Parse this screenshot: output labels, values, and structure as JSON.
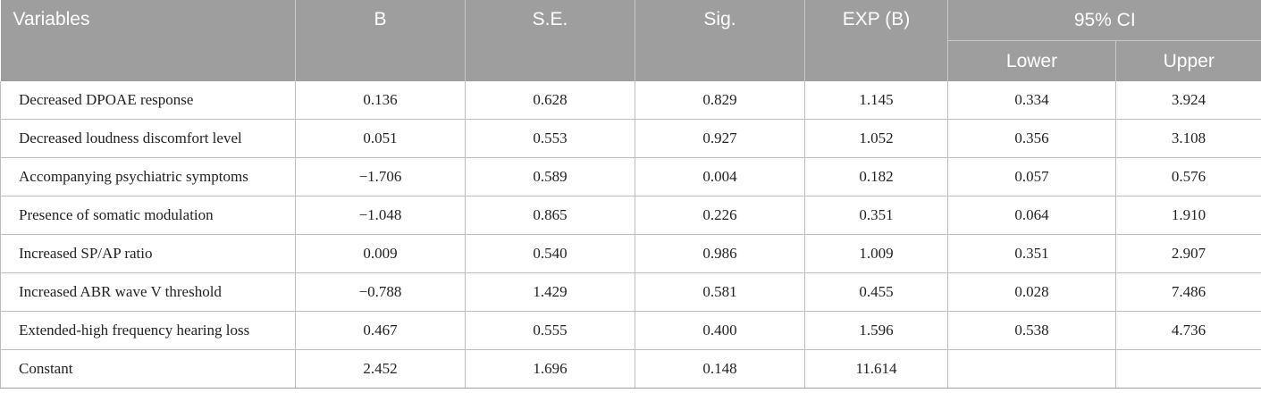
{
  "table": {
    "headers": {
      "variables": "Variables",
      "b": "B",
      "se": "S.E.",
      "sig": "Sig.",
      "expb": "EXP (B)",
      "ci": "95% CI",
      "lower": "Lower",
      "upper": "Upper"
    },
    "rows": [
      {
        "variable": "Decreased DPOAE response",
        "b": "0.136",
        "se": "0.628",
        "sig": "0.829",
        "expb": "1.145",
        "lower": "0.334",
        "upper": "3.924"
      },
      {
        "variable": "Decreased loudness discomfort level",
        "b": "0.051",
        "se": "0.553",
        "sig": "0.927",
        "expb": "1.052",
        "lower": "0.356",
        "upper": "3.108"
      },
      {
        "variable": "Accompanying psychiatric symptoms",
        "b": "−1.706",
        "se": "0.589",
        "sig": "0.004",
        "expb": "0.182",
        "lower": "0.057",
        "upper": "0.576"
      },
      {
        "variable": "Presence of somatic modulation",
        "b": "−1.048",
        "se": "0.865",
        "sig": "0.226",
        "expb": "0.351",
        "lower": "0.064",
        "upper": "1.910"
      },
      {
        "variable": "Increased SP/AP ratio",
        "b": "0.009",
        "se": "0.540",
        "sig": "0.986",
        "expb": "1.009",
        "lower": "0.351",
        "upper": "2.907"
      },
      {
        "variable": "Increased ABR wave V threshold",
        "b": "−0.788",
        "se": "1.429",
        "sig": "0.581",
        "expb": "0.455",
        "lower": "0.028",
        "upper": "7.486"
      },
      {
        "variable": "Extended-high frequency hearing loss",
        "b": "0.467",
        "se": "0.555",
        "sig": "0.400",
        "expb": "1.596",
        "lower": "0.538",
        "upper": "4.736"
      },
      {
        "variable": "Constant",
        "b": "2.452",
        "se": "1.696",
        "sig": "0.148",
        "expb": "11.614",
        "lower": "",
        "upper": ""
      }
    ]
  }
}
